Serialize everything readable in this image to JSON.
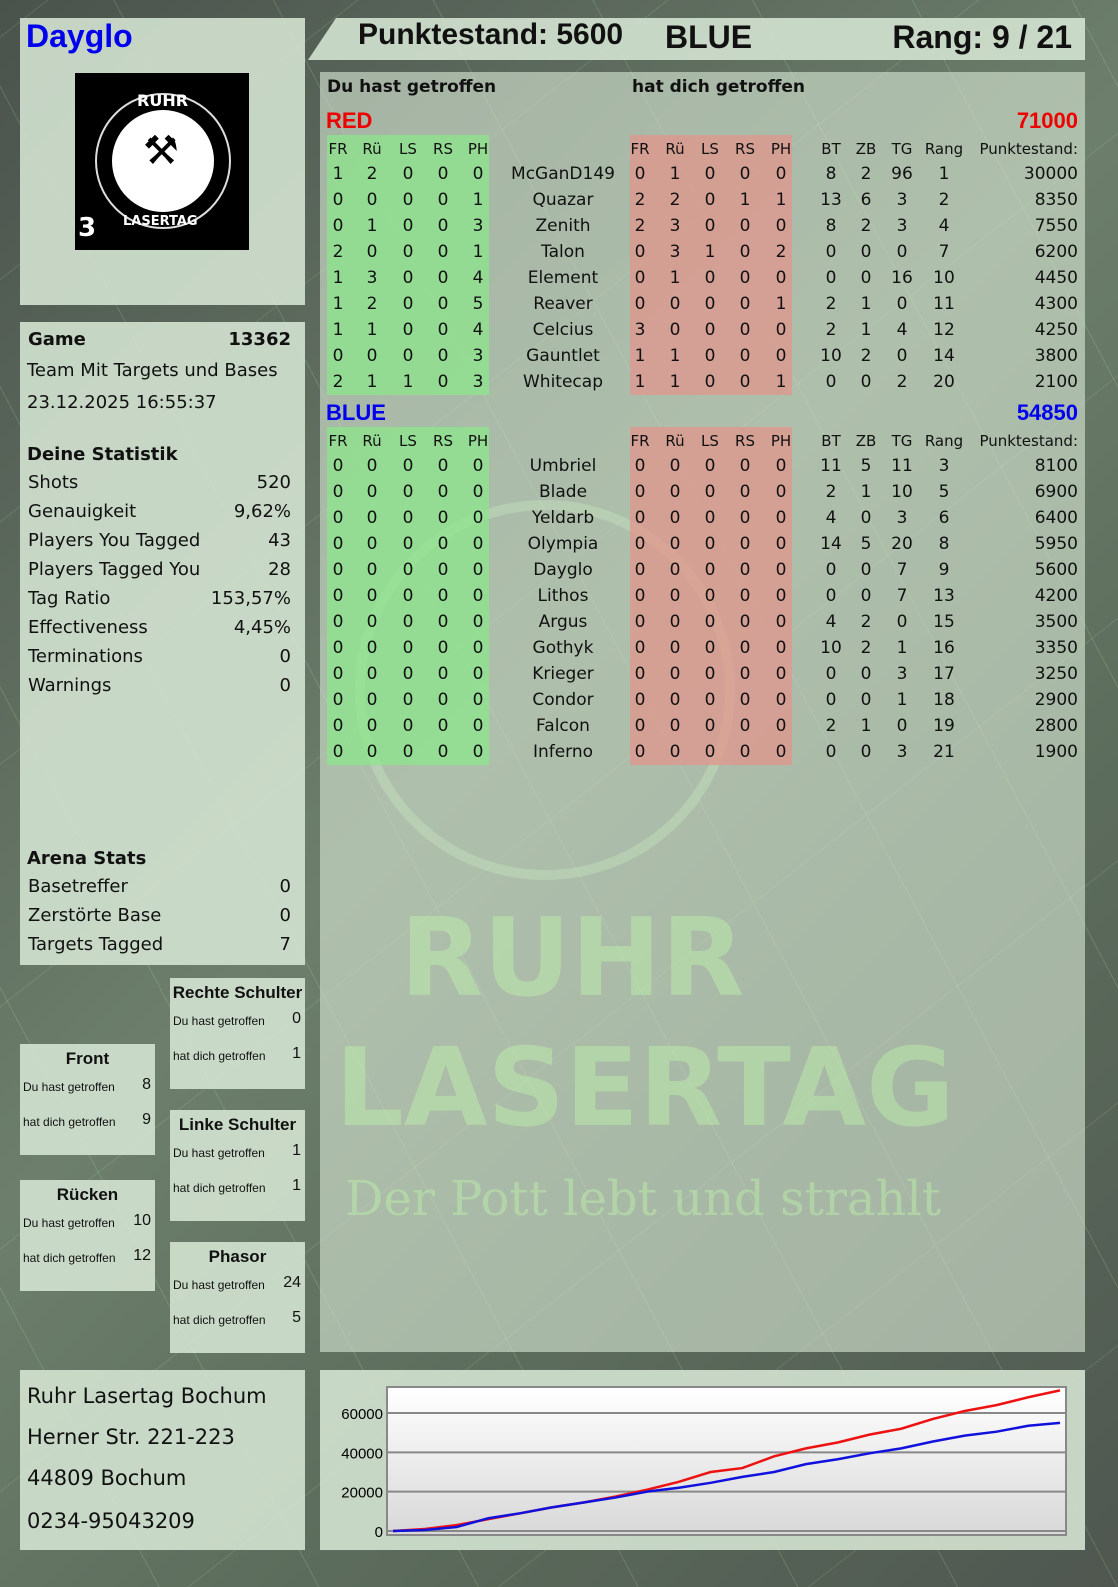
{
  "player": {
    "name": "Dayglo",
    "name_color": "#0000ee"
  },
  "header": {
    "score": "Punktestand: 5600",
    "team": "BLUE",
    "rank": "Rang: 9 / 21"
  },
  "logo": {
    "text_top": "RUHR",
    "text_bottom": "LASERTAG",
    "number": "3",
    "icon": "crossed-hammers-icon"
  },
  "main": {
    "you_hit": "Du hast getroffen",
    "hit_you": "hat dich getroffen",
    "columns_you": [
      "FR",
      "Rü",
      "LS",
      "RS",
      "PH"
    ],
    "columns_them": [
      "FR",
      "Rü",
      "LS",
      "RS",
      "PH"
    ],
    "columns_stats": [
      "BT",
      "ZB",
      "TG",
      "Rang",
      "Punktestand:"
    ],
    "teams": [
      {
        "name": "RED",
        "score": "71000",
        "color": "#ee0000",
        "rows": [
          {
            "you": [
              1,
              2,
              0,
              0,
              0
            ],
            "name": "McGanD149",
            "them": [
              0,
              1,
              0,
              0,
              0
            ],
            "stats": [
              8,
              2,
              96,
              1,
              30000
            ]
          },
          {
            "you": [
              0,
              0,
              0,
              0,
              1
            ],
            "name": "Quazar",
            "them": [
              2,
              2,
              0,
              1,
              1
            ],
            "stats": [
              13,
              6,
              3,
              2,
              8350
            ]
          },
          {
            "you": [
              0,
              1,
              0,
              0,
              3
            ],
            "name": "Zenith",
            "them": [
              2,
              3,
              0,
              0,
              0
            ],
            "stats": [
              8,
              2,
              3,
              4,
              7550
            ]
          },
          {
            "you": [
              2,
              0,
              0,
              0,
              1
            ],
            "name": "Talon",
            "them": [
              0,
              3,
              1,
              0,
              2
            ],
            "stats": [
              0,
              0,
              0,
              7,
              6200
            ]
          },
          {
            "you": [
              1,
              3,
              0,
              0,
              4
            ],
            "name": "Element",
            "them": [
              0,
              1,
              0,
              0,
              0
            ],
            "stats": [
              0,
              0,
              16,
              10,
              4450
            ]
          },
          {
            "you": [
              1,
              2,
              0,
              0,
              5
            ],
            "name": "Reaver",
            "them": [
              0,
              0,
              0,
              0,
              1
            ],
            "stats": [
              2,
              1,
              0,
              11,
              4300
            ]
          },
          {
            "you": [
              1,
              1,
              0,
              0,
              4
            ],
            "name": "Celcius",
            "them": [
              3,
              0,
              0,
              0,
              0
            ],
            "stats": [
              2,
              1,
              4,
              12,
              4250
            ]
          },
          {
            "you": [
              0,
              0,
              0,
              0,
              3
            ],
            "name": "Gauntlet",
            "them": [
              1,
              1,
              0,
              0,
              0
            ],
            "stats": [
              10,
              2,
              0,
              14,
              3800
            ]
          },
          {
            "you": [
              2,
              1,
              1,
              0,
              3
            ],
            "name": "Whitecap",
            "them": [
              1,
              1,
              0,
              0,
              1
            ],
            "stats": [
              0,
              0,
              2,
              20,
              2100
            ]
          }
        ]
      },
      {
        "name": "BLUE",
        "score": "54850",
        "color": "#0000ee",
        "rows": [
          {
            "you": [
              0,
              0,
              0,
              0,
              0
            ],
            "name": "Umbriel",
            "them": [
              0,
              0,
              0,
              0,
              0
            ],
            "stats": [
              11,
              5,
              11,
              3,
              8100
            ]
          },
          {
            "you": [
              0,
              0,
              0,
              0,
              0
            ],
            "name": "Blade",
            "them": [
              0,
              0,
              0,
              0,
              0
            ],
            "stats": [
              2,
              1,
              10,
              5,
              6900
            ]
          },
          {
            "you": [
              0,
              0,
              0,
              0,
              0
            ],
            "name": "Yeldarb",
            "them": [
              0,
              0,
              0,
              0,
              0
            ],
            "stats": [
              4,
              0,
              3,
              6,
              6400
            ]
          },
          {
            "you": [
              0,
              0,
              0,
              0,
              0
            ],
            "name": "Olympia",
            "them": [
              0,
              0,
              0,
              0,
              0
            ],
            "stats": [
              14,
              5,
              20,
              8,
              5950
            ]
          },
          {
            "you": [
              0,
              0,
              0,
              0,
              0
            ],
            "name": "Dayglo",
            "them": [
              0,
              0,
              0,
              0,
              0
            ],
            "stats": [
              0,
              0,
              7,
              9,
              5600
            ]
          },
          {
            "you": [
              0,
              0,
              0,
              0,
              0
            ],
            "name": "Lithos",
            "them": [
              0,
              0,
              0,
              0,
              0
            ],
            "stats": [
              0,
              0,
              7,
              13,
              4200
            ]
          },
          {
            "you": [
              0,
              0,
              0,
              0,
              0
            ],
            "name": "Argus",
            "them": [
              0,
              0,
              0,
              0,
              0
            ],
            "stats": [
              4,
              2,
              0,
              15,
              3500
            ]
          },
          {
            "you": [
              0,
              0,
              0,
              0,
              0
            ],
            "name": "Gothyk",
            "them": [
              0,
              0,
              0,
              0,
              0
            ],
            "stats": [
              10,
              2,
              1,
              16,
              3350
            ]
          },
          {
            "you": [
              0,
              0,
              0,
              0,
              0
            ],
            "name": "Krieger",
            "them": [
              0,
              0,
              0,
              0,
              0
            ],
            "stats": [
              0,
              0,
              3,
              17,
              3250
            ]
          },
          {
            "you": [
              0,
              0,
              0,
              0,
              0
            ],
            "name": "Condor",
            "them": [
              0,
              0,
              0,
              0,
              0
            ],
            "stats": [
              0,
              0,
              1,
              18,
              2900
            ]
          },
          {
            "you": [
              0,
              0,
              0,
              0,
              0
            ],
            "name": "Falcon",
            "them": [
              0,
              0,
              0,
              0,
              0
            ],
            "stats": [
              2,
              1,
              0,
              19,
              2800
            ]
          },
          {
            "you": [
              0,
              0,
              0,
              0,
              0
            ],
            "name": "Inferno",
            "them": [
              0,
              0,
              0,
              0,
              0
            ],
            "stats": [
              0,
              0,
              3,
              21,
              1900
            ]
          }
        ]
      }
    ]
  },
  "game": {
    "label": "Game",
    "id": "13362",
    "mode": "Team Mit Targets und Bases",
    "datetime": "23.12.2025 16:55:37"
  },
  "stats": {
    "title": "Deine Statistik",
    "items": [
      {
        "label": "Shots",
        "value": "520"
      },
      {
        "label": "Genauigkeit",
        "value": "9,62%"
      },
      {
        "label": "Players You Tagged",
        "value": "43"
      },
      {
        "label": "Players Tagged You",
        "value": "28"
      },
      {
        "label": "Tag Ratio",
        "value": "153,57%"
      },
      {
        "label": "Effectiveness",
        "value": "4,45%"
      },
      {
        "label": "Terminations",
        "value": "0"
      },
      {
        "label": "Warnings",
        "value": "0"
      }
    ]
  },
  "arena": {
    "title": "Arena Stats",
    "items": [
      {
        "label": "Basetreffer",
        "value": "0"
      },
      {
        "label": "Zerstörte Base",
        "value": "0"
      },
      {
        "label": "Targets Tagged",
        "value": "7"
      }
    ]
  },
  "zones": [
    {
      "title": "Rechte Schulter",
      "you_label": "Du hast getroffen",
      "you": "0",
      "them_label": "hat dich getroffen",
      "them": "1"
    },
    {
      "title": "Front",
      "you_label": "Du hast getroffen",
      "you": "8",
      "them_label": "hat dich getroffen",
      "them": "9"
    },
    {
      "title": "Linke Schulter",
      "you_label": "Du hast getroffen",
      "you": "1",
      "them_label": "hat dich getroffen",
      "them": "1"
    },
    {
      "title": "Rücken",
      "you_label": "Du hast getroffen",
      "you": "10",
      "them_label": "hat dich getroffen",
      "them": "12"
    },
    {
      "title": "Phasor",
      "you_label": "Du hast getroffen",
      "you": "24",
      "them_label": "hat dich getroffen",
      "them": "5"
    }
  ],
  "address": {
    "line1": "Ruhr Lasertag Bochum",
    "line2": "Herner Str. 221-223",
    "line3": "44809 Bochum",
    "line4": "0234-95043209"
  },
  "watermark": {
    "line1": "RUHR",
    "line2": "LASERTAG",
    "line3": "Der Pott lebt und strahlt"
  },
  "chart_data": {
    "type": "line",
    "ylim": [
      0,
      73000
    ],
    "yticks": [
      0,
      20000,
      40000,
      60000
    ],
    "ytick_labels": [
      "0",
      "20000",
      "40000",
      "60000"
    ],
    "grid": true,
    "series": [
      {
        "color": "#ee1111",
        "values": [
          0,
          1000,
          3000,
          6000,
          9000,
          12000,
          14500,
          17500,
          21000,
          25000,
          30000,
          32000,
          38000,
          42000,
          45000,
          49000,
          52000,
          57000,
          61000,
          64000,
          68000,
          71500
        ]
      },
      {
        "color": "#1111dd",
        "values": [
          0,
          500,
          2000,
          6500,
          9000,
          12000,
          14500,
          17000,
          20000,
          22000,
          24500,
          27500,
          30000,
          34000,
          36500,
          39500,
          42000,
          45500,
          48500,
          50500,
          53500,
          55000
        ]
      }
    ]
  }
}
